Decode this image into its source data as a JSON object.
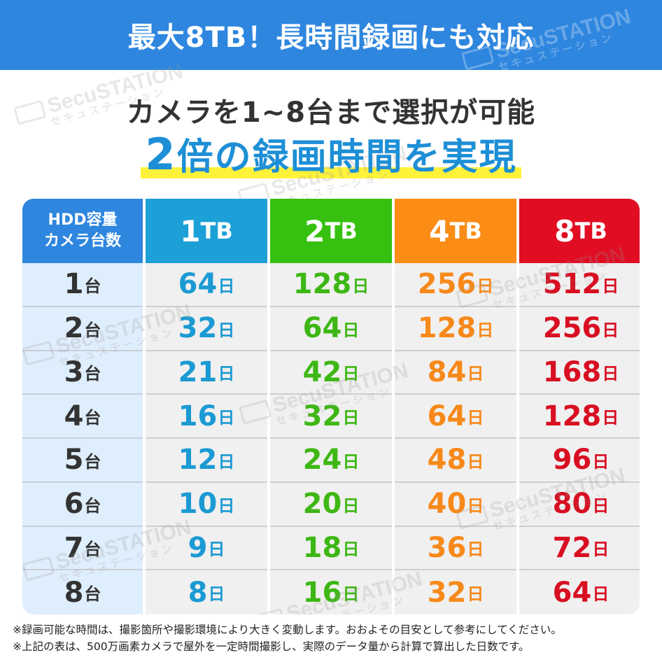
{
  "banner": {
    "title": "最大8TB！長時間録画にも対応"
  },
  "headline": {
    "line1": "カメラを1~8台まで選択が可能",
    "line2_number": "2",
    "line2_text": "倍の録画時間を実現"
  },
  "watermark": {
    "text": "SecuSTATION",
    "subtext": "セキュステーション"
  },
  "table": {
    "corner": {
      "line1": "HDD容量",
      "line2": "カメラ台数"
    },
    "columns": [
      {
        "value": "1",
        "unit": "TB",
        "color": "#1ca0d7"
      },
      {
        "value": "2",
        "unit": "TB",
        "color": "#36c00f"
      },
      {
        "value": "4",
        "unit": "TB",
        "color": "#fb8c16"
      },
      {
        "value": "8",
        "unit": "TB",
        "color": "#e10e23"
      }
    ],
    "row_unit": "台",
    "value_unit": "日",
    "rows": [
      {
        "cameras": "1",
        "values": [
          "64",
          "128",
          "256",
          "512"
        ]
      },
      {
        "cameras": "2",
        "values": [
          "32",
          "64",
          "128",
          "256"
        ]
      },
      {
        "cameras": "3",
        "values": [
          "21",
          "42",
          "84",
          "168"
        ]
      },
      {
        "cameras": "4",
        "values": [
          "16",
          "32",
          "64",
          "128"
        ]
      },
      {
        "cameras": "5",
        "values": [
          "12",
          "24",
          "48",
          "96"
        ]
      },
      {
        "cameras": "6",
        "values": [
          "10",
          "20",
          "40",
          "80"
        ]
      },
      {
        "cameras": "7",
        "values": [
          "9",
          "18",
          "36",
          "72"
        ]
      },
      {
        "cameras": "8",
        "values": [
          "8",
          "16",
          "32",
          "64"
        ]
      }
    ]
  },
  "notes": [
    "※録画可能な時間は、撮影箇所や撮影環境により大きく変動します。おおよその目安として参考にしてください。",
    "※上記の表は、500万画素カメラで屋外を一定時間撮影し、実際のデータ量から計算で算出した日数です。"
  ]
}
